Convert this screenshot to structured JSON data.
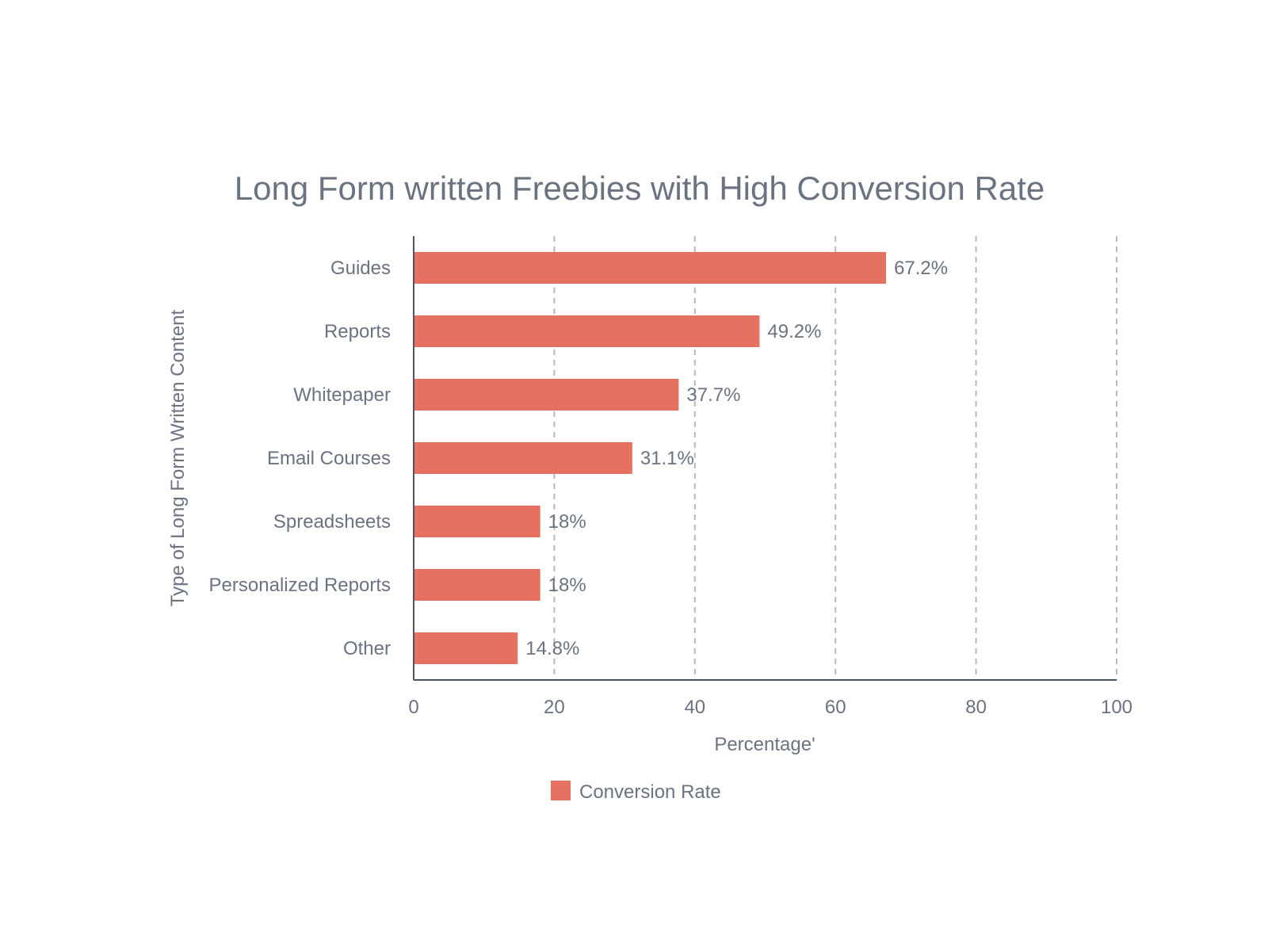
{
  "chart_data": {
    "type": "bar",
    "orientation": "horizontal",
    "title": "Long Form written Freebies with High Conversion Rate",
    "xlabel": "Percentage'",
    "ylabel": "Type of Long Form Written Content",
    "categories": [
      "Guides",
      "Reports",
      "Whitepaper",
      "Email Courses",
      "Spreadsheets",
      "Personalized Reports",
      "Other"
    ],
    "series": [
      {
        "name": "Conversion Rate",
        "values": [
          67.2,
          49.2,
          37.7,
          31.1,
          18,
          18,
          14.8
        ],
        "labels": [
          "67.2%",
          "49.2%",
          "37.7%",
          "31.1%",
          "18%",
          "18%",
          "14.8%"
        ],
        "color": "#e57160"
      }
    ],
    "xlim": [
      0,
      100
    ],
    "xticks": [
      0,
      20,
      40,
      60,
      80,
      100
    ],
    "xtick_labels": [
      "0",
      "20",
      "40",
      "60",
      "80",
      "100"
    ],
    "grid": "vertical dashed",
    "legend_position": "bottom-center",
    "colors": {
      "text": "#6b7280",
      "axis": "#4b5563",
      "grid": "#b8b8b8",
      "bar": "#e57160"
    }
  }
}
